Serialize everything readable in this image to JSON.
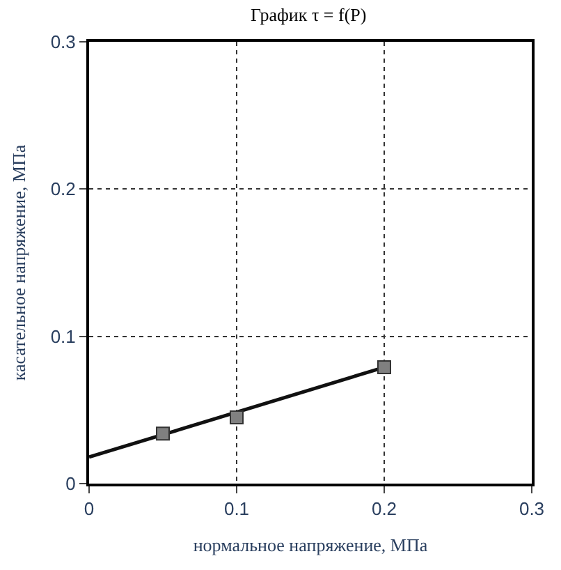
{
  "chart_data": {
    "type": "line",
    "title": "График τ = f(P)",
    "xlabel": "нормальное напряжение, МПа",
    "ylabel": "касательное напряжение, МПа",
    "xlim": [
      0,
      0.3
    ],
    "xticks": [
      0,
      0.1,
      0.2,
      0.3
    ],
    "ylim": [
      0,
      0.3
    ],
    "yticks": [
      0,
      0.1,
      0.2,
      0.3
    ],
    "grid": true,
    "series": [
      {
        "color": "#111111",
        "x": [
          0,
          0.2
        ],
        "values": [
          0.018,
          0.079
        ],
        "marker": "none",
        "line_style": "solid"
      },
      {
        "type": "scatter",
        "color": "#808080",
        "x": [
          0.05,
          0.1,
          0.2
        ],
        "values": [
          0.034,
          0.045,
          0.079
        ],
        "marker": "square"
      }
    ]
  }
}
